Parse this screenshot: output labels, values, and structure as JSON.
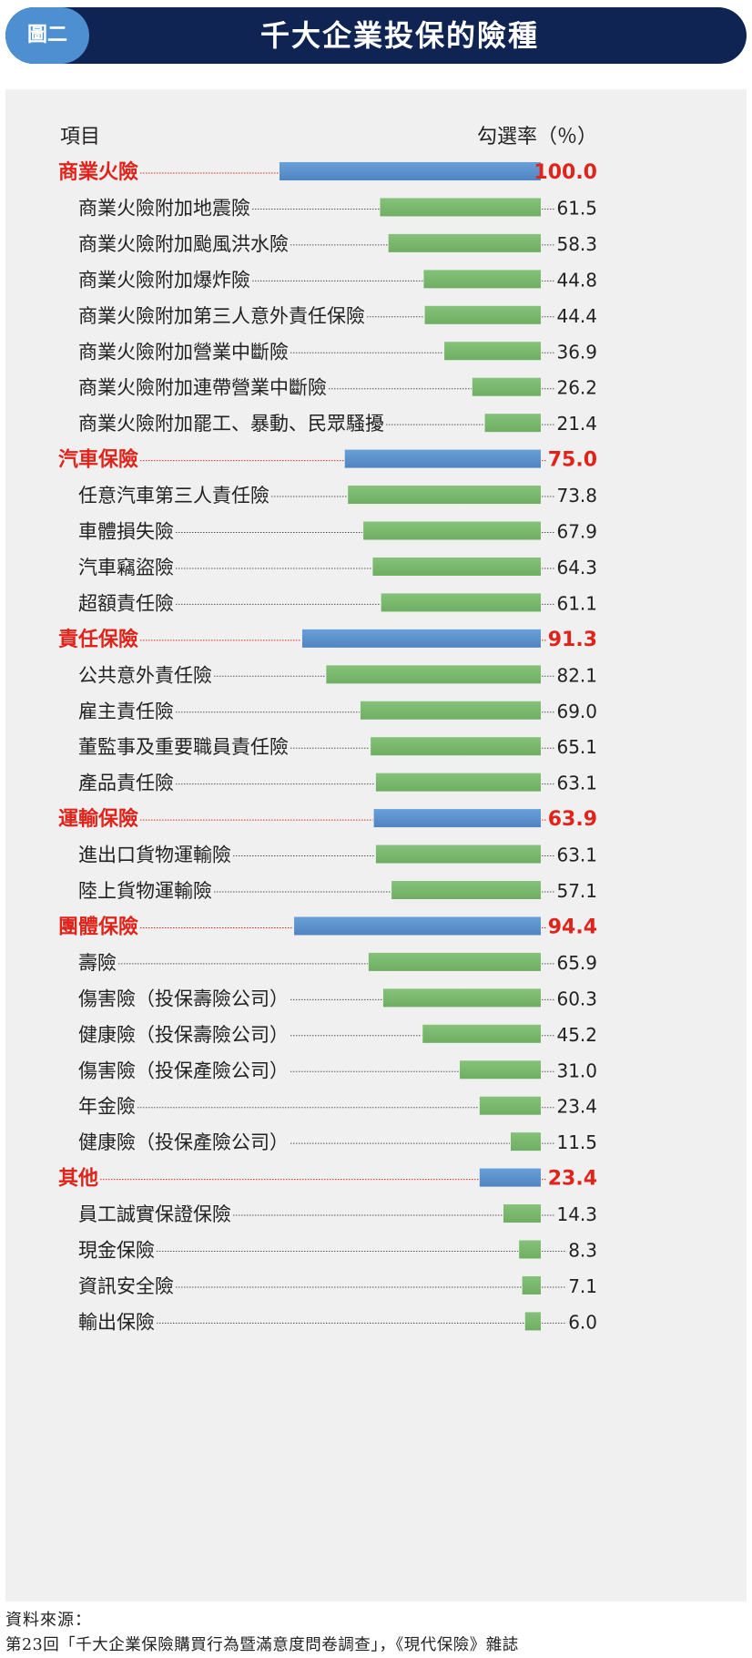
{
  "header": {
    "badge": "圖二",
    "title": "千大企業投保的險種"
  },
  "chart_data": {
    "type": "bar",
    "title": "千大企業投保的險種",
    "col_label_left": "項目",
    "col_label_right": "勾選率（％）",
    "xlim": [
      0,
      100
    ],
    "rows": [
      {
        "label": "商業火險",
        "value": 100.0,
        "display": "100.0",
        "category": true
      },
      {
        "label": "商業火險附加地震險",
        "value": 61.5,
        "display": "61.5",
        "category": false
      },
      {
        "label": "商業火險附加颱風洪水險",
        "value": 58.3,
        "display": "58.3",
        "category": false
      },
      {
        "label": "商業火險附加爆炸險",
        "value": 44.8,
        "display": "44.8",
        "category": false
      },
      {
        "label": "商業火險附加第三人意外責任保險",
        "value": 44.4,
        "display": "44.4",
        "category": false
      },
      {
        "label": "商業火險附加營業中斷險",
        "value": 36.9,
        "display": "36.9",
        "category": false
      },
      {
        "label": "商業火險附加連帶營業中斷險",
        "value": 26.2,
        "display": "26.2",
        "category": false
      },
      {
        "label": "商業火險附加罷工、暴動、民眾騷擾",
        "value": 21.4,
        "display": "21.4",
        "category": false
      },
      {
        "label": "汽車保險",
        "value": 75.0,
        "display": "75.0",
        "category": true
      },
      {
        "label": "任意汽車第三人責任險",
        "value": 73.8,
        "display": "73.8",
        "category": false
      },
      {
        "label": "車體損失險",
        "value": 67.9,
        "display": "67.9",
        "category": false
      },
      {
        "label": "汽車竊盜險",
        "value": 64.3,
        "display": "64.3",
        "category": false
      },
      {
        "label": "超額責任險",
        "value": 61.1,
        "display": "61.1",
        "category": false
      },
      {
        "label": "責任保險",
        "value": 91.3,
        "display": "91.3",
        "category": true
      },
      {
        "label": "公共意外責任險",
        "value": 82.1,
        "display": "82.1",
        "category": false
      },
      {
        "label": "雇主責任險",
        "value": 69.0,
        "display": "69.0",
        "category": false
      },
      {
        "label": "董監事及重要職員責任險",
        "value": 65.1,
        "display": "65.1",
        "category": false
      },
      {
        "label": "產品責任險",
        "value": 63.1,
        "display": "63.1",
        "category": false
      },
      {
        "label": "運輸保險",
        "value": 63.9,
        "display": "63.9",
        "category": true
      },
      {
        "label": "進出口貨物運輸險",
        "value": 63.1,
        "display": "63.1",
        "category": false
      },
      {
        "label": "陸上貨物運輸險",
        "value": 57.1,
        "display": "57.1",
        "category": false
      },
      {
        "label": "團體保險",
        "value": 94.4,
        "display": "94.4",
        "category": true
      },
      {
        "label": "壽險",
        "value": 65.9,
        "display": "65.9",
        "category": false
      },
      {
        "label": "傷害險（投保壽險公司）",
        "value": 60.3,
        "display": "60.3",
        "category": false
      },
      {
        "label": "健康險（投保壽險公司）",
        "value": 45.2,
        "display": "45.2",
        "category": false
      },
      {
        "label": "傷害險（投保產險公司）",
        "value": 31.0,
        "display": "31.0",
        "category": false
      },
      {
        "label": "年金險",
        "value": 23.4,
        "display": "23.4",
        "category": false
      },
      {
        "label": "健康險（投保產險公司）",
        "value": 11.5,
        "display": "11.5",
        "category": false
      },
      {
        "label": "其他",
        "value": 23.4,
        "display": "23.4",
        "category": true
      },
      {
        "label": "員工誠實保證保險",
        "value": 14.3,
        "display": "14.3",
        "category": false
      },
      {
        "label": "現金保險",
        "value": 8.3,
        "display": "8.3",
        "category": false
      },
      {
        "label": "資訊安全險",
        "value": 7.1,
        "display": "7.1",
        "category": false
      },
      {
        "label": "輸出保險",
        "value": 6.0,
        "display": "6.0",
        "category": false
      }
    ],
    "colors": {
      "category_bar": "#5a8fcb",
      "item_bar": "#7bb86f",
      "category_text": "#e0241b",
      "item_text": "#222222",
      "category_leader": "#e0241b",
      "item_leader": "#555555"
    }
  },
  "footer": {
    "source_label": "資料來源：",
    "source_text": "第23回「千大企業保險購買行為暨滿意度問卷調查」，《現代保險》雜誌"
  }
}
